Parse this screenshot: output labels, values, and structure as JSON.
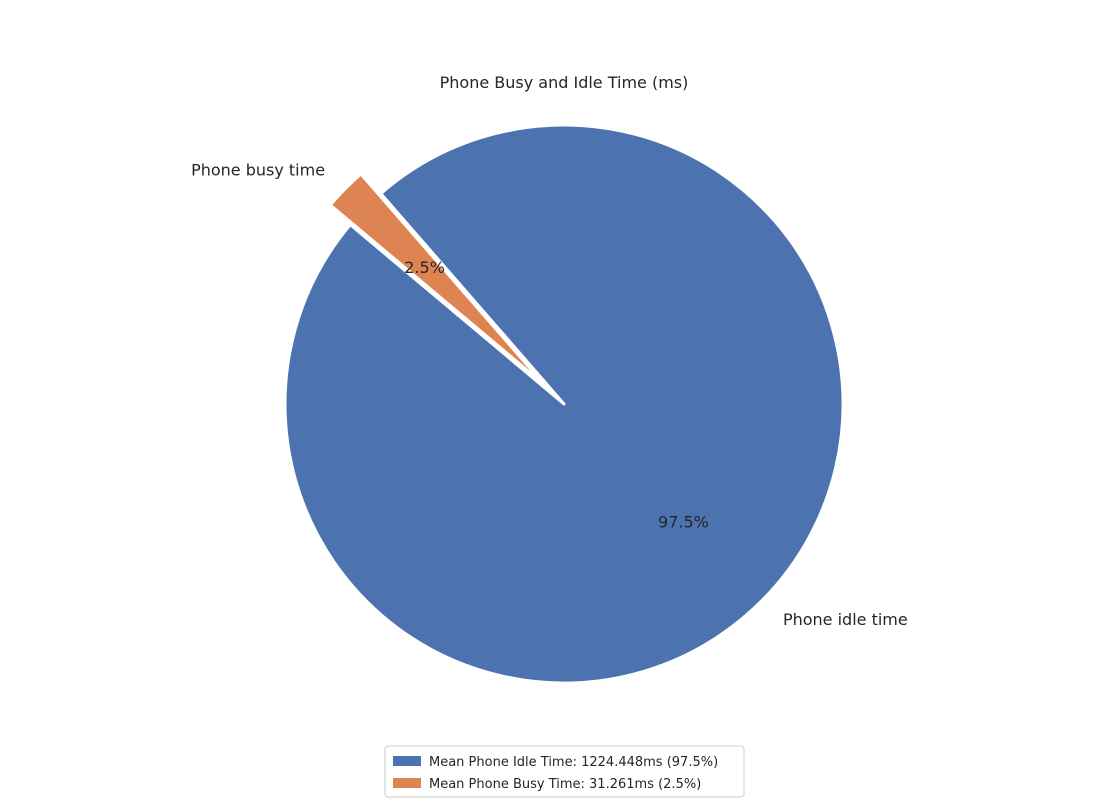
{
  "chart_data": {
    "type": "pie",
    "title": "Phone Busy and Idle Time (ms)",
    "slices": [
      {
        "label": "Phone idle time",
        "value": 1224.448,
        "percent_label": "97.5%",
        "legend": "Mean Phone Idle Time: 1224.448ms (97.5%)",
        "color": "#4c72b0",
        "exploded": false
      },
      {
        "label": "Phone busy time",
        "value": 31.261,
        "percent_label": "2.5%",
        "legend": "Mean Phone Busy Time: 31.261ms (2.5%)",
        "color": "#dd8452",
        "exploded": true
      }
    ],
    "start_angle_deg": 140,
    "legend_position": "bottom-center"
  }
}
